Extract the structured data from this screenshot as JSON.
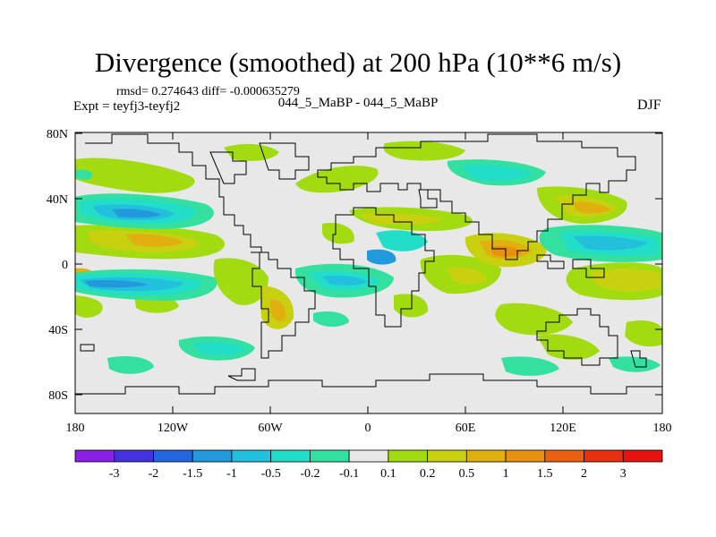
{
  "title": "Divergence (smoothed) at 200 hPa (10**6 m/s)",
  "stats": {
    "rmsd_text": "rmsd= 0.274643 diff= -0.000635279"
  },
  "experiment": "Expt = teyfj3-teyfj2",
  "comparison": "044_5_MaBP - 044_5_MaBP",
  "season": "DJF",
  "lat_ticks": [
    "80N",
    "40N",
    "0",
    "40S",
    "80S"
  ],
  "lon_ticks": [
    "180",
    "120W",
    "60W",
    "0",
    "60E",
    "120E",
    "180"
  ],
  "colorbar": {
    "labels": [
      "-3",
      "-2",
      "-1.5",
      "-1",
      "-0.5",
      "-0.2",
      "-0.1",
      "0.1",
      "0.2",
      "0.5",
      "1",
      "1.5",
      "2",
      "3"
    ],
    "colors": [
      "#8a1fe6",
      "#4433dd",
      "#2266dd",
      "#2299dd",
      "#22c0dd",
      "#22ddc8",
      "#33e0a0",
      "#e8e8e8",
      "#a2dc10",
      "#c8d010",
      "#e0b010",
      "#e89010",
      "#e86010",
      "#e83010",
      "#e81010"
    ]
  },
  "colors": {
    "background": "#ffffff",
    "land_outline": "#000000"
  }
}
